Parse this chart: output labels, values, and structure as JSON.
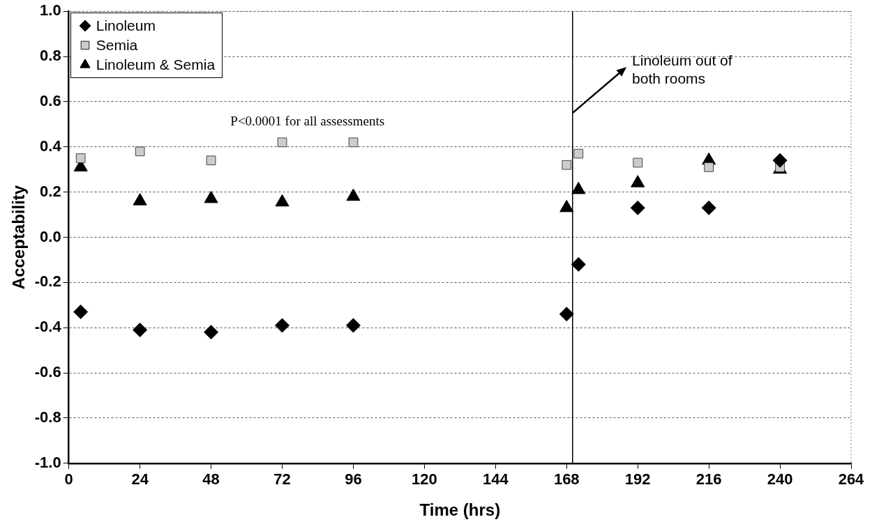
{
  "chart_data": {
    "type": "scatter",
    "xlabel": "Time (hrs)",
    "ylabel": "Acceptability",
    "xlim": [
      0,
      264
    ],
    "xticks": [
      0,
      24,
      48,
      72,
      96,
      120,
      144,
      168,
      192,
      216,
      240,
      264
    ],
    "ylim": [
      -1,
      1
    ],
    "yticks": [
      {
        "value": -1,
        "label": "-1.0"
      },
      {
        "value": -0.8,
        "label": "-0.8"
      },
      {
        "value": -0.6,
        "label": "-0.6"
      },
      {
        "value": -0.4,
        "label": "-0.4"
      },
      {
        "value": -0.2,
        "label": "-0.2"
      },
      {
        "value": 0,
        "label": "0.0"
      },
      {
        "value": 0.2,
        "label": "0.2"
      },
      {
        "value": 0.4,
        "label": "0.4"
      },
      {
        "value": 0.6,
        "label": "0.6"
      },
      {
        "value": 0.8,
        "label": "0.8"
      },
      {
        "value": 1,
        "label": "1.0"
      }
    ],
    "grid": "y",
    "legend": "top left",
    "series": [
      {
        "name": "Linoleum",
        "color": "#000000",
        "marker": "diamond",
        "x": [
          4,
          24,
          48,
          72,
          96,
          168,
          172,
          192,
          216,
          240
        ],
        "values": [
          -0.33,
          -0.41,
          -0.42,
          -0.39,
          -0.39,
          -0.34,
          -0.12,
          0.13,
          0.13,
          0.34
        ]
      },
      {
        "name": "Semia",
        "color": "#cccccc",
        "marker": "square",
        "x": [
          4,
          24,
          48,
          72,
          96,
          168,
          172,
          192,
          216,
          240
        ],
        "values": [
          0.35,
          0.38,
          0.34,
          0.42,
          0.42,
          0.32,
          0.37,
          0.33,
          0.31,
          0.31
        ]
      },
      {
        "name": "Linoleum & Semia",
        "color": "#000000",
        "marker": "triangle",
        "x": [
          4,
          24,
          48,
          72,
          96,
          168,
          172,
          192,
          216,
          240
        ],
        "values": [
          0.31,
          0.16,
          0.17,
          0.155,
          0.18,
          0.13,
          0.21,
          0.24,
          0.34,
          0.3
        ]
      }
    ],
    "ref_lines": [
      {
        "axis": "x",
        "value": 170,
        "color": "#000000"
      }
    ],
    "annotations": [
      {
        "text": "Linoleum out of both rooms",
        "x": 170,
        "y": 0.55
      },
      "P<0.0001 for all assessments"
    ]
  }
}
